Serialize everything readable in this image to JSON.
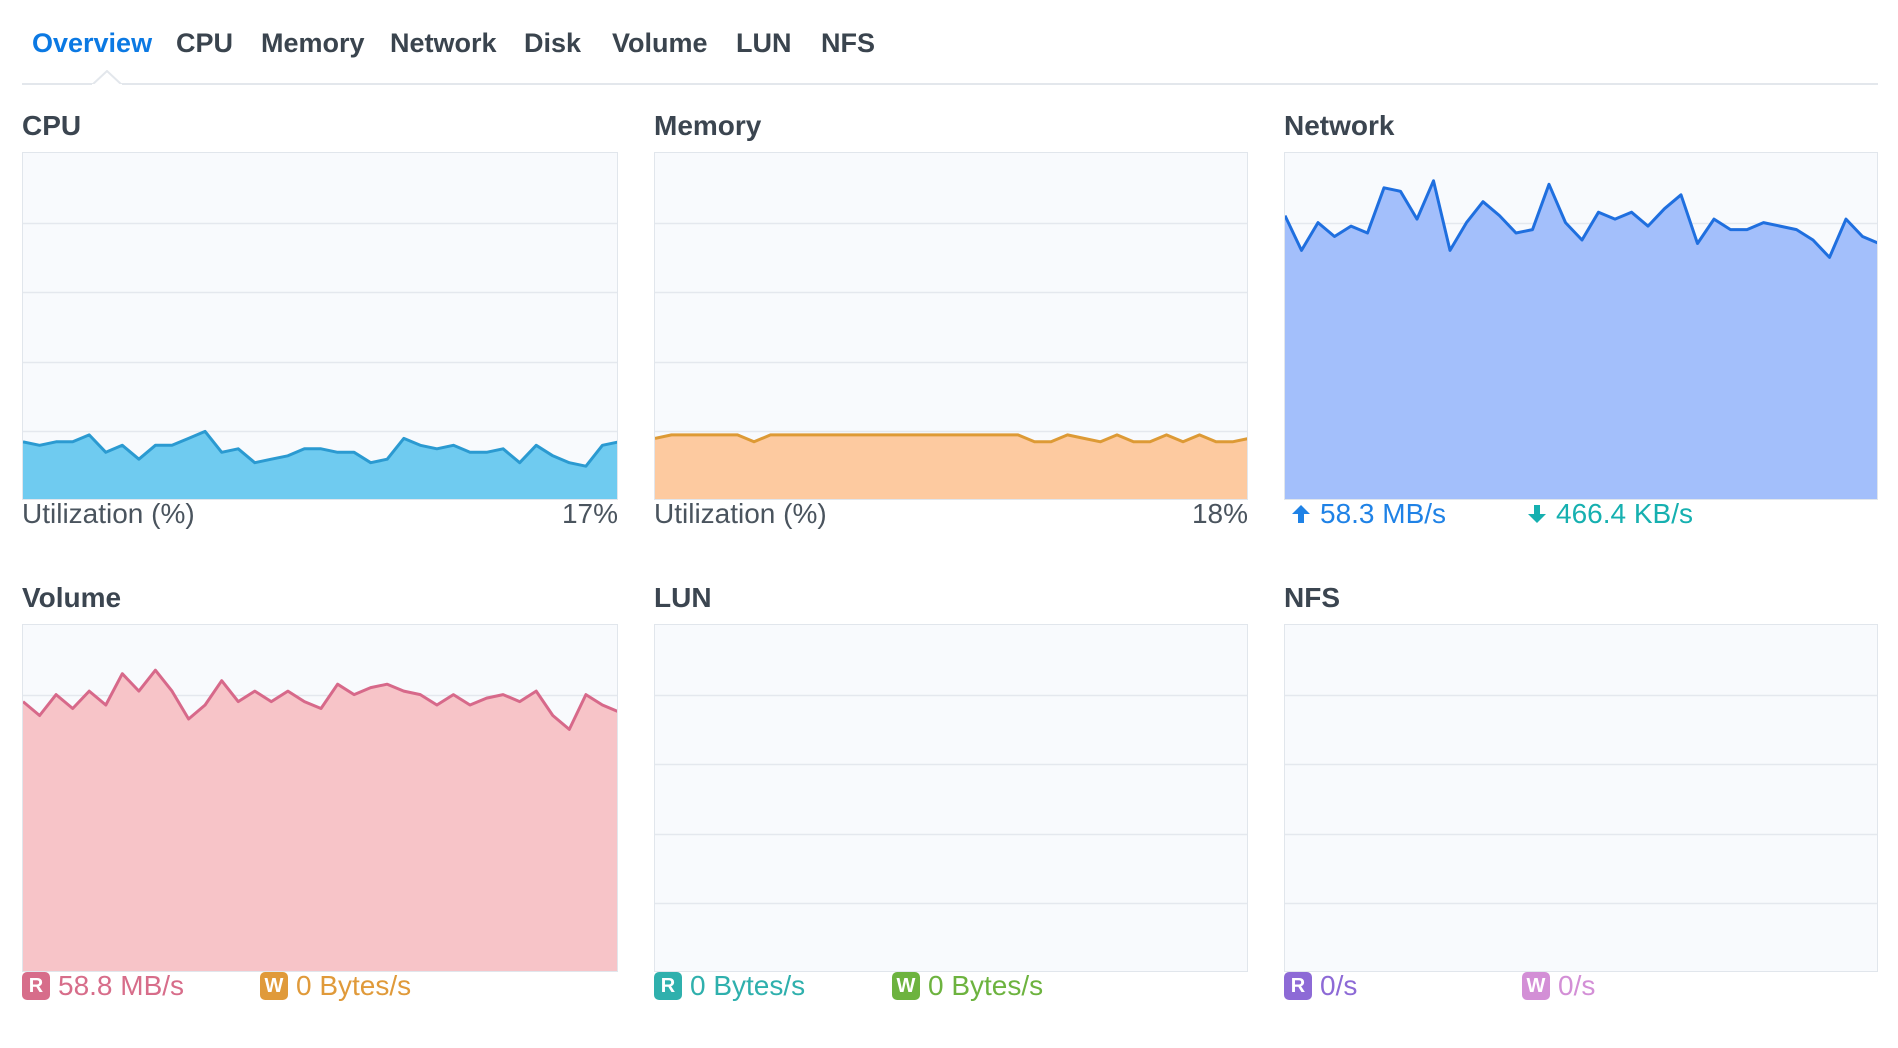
{
  "tabs": [
    {
      "label": "Overview",
      "active": true
    },
    {
      "label": "CPU"
    },
    {
      "label": "Memory"
    },
    {
      "label": "Network"
    },
    {
      "label": "Disk"
    },
    {
      "label": "Volume"
    },
    {
      "label": "LUN"
    },
    {
      "label": "NFS"
    }
  ],
  "panels": {
    "cpu": {
      "title": "CPU",
      "label": "Utilization  (%)",
      "value": "17%",
      "color": "#2b9ad1",
      "fill": "#6fcbf0",
      "series": [
        17,
        16,
        17,
        17,
        19,
        14,
        16,
        12,
        16,
        16,
        18,
        20,
        14,
        15,
        11,
        12,
        13,
        15,
        15,
        14,
        14,
        11,
        12,
        18,
        16,
        15,
        16,
        14,
        14,
        15,
        11,
        16,
        13,
        11,
        10,
        16,
        17
      ]
    },
    "memory": {
      "title": "Memory",
      "label": "Utilization  (%)",
      "value": "18%",
      "color": "#dd9a35",
      "fill": "#fdcaa0",
      "series": [
        18,
        19,
        19,
        19,
        19,
        19,
        17,
        19,
        19,
        19,
        19,
        19,
        19,
        19,
        19,
        19,
        19,
        19,
        19,
        19,
        19,
        19,
        19,
        17,
        17,
        19,
        18,
        17,
        19,
        17,
        17,
        19,
        17,
        19,
        17,
        17,
        18
      ]
    },
    "network": {
      "title": "Network",
      "upload": "58.3 MB/s",
      "download": "466.4 KB/s",
      "upload_color": "#1f82e6",
      "download_color": "#16b0b0",
      "color": "#1f6fdf",
      "fill": "#a3bffb",
      "series": [
        82,
        72,
        80,
        76,
        79,
        77,
        90,
        89,
        81,
        92,
        72,
        80,
        86,
        82,
        77,
        78,
        91,
        80,
        75,
        83,
        81,
        83,
        79,
        84,
        88,
        74,
        81,
        78,
        78,
        80,
        79,
        78,
        75,
        70,
        81,
        76,
        74
      ]
    },
    "volume": {
      "title": "Volume",
      "read": "58.8 MB/s",
      "write": "0 Bytes/s",
      "read_color": "#d76d8a",
      "write_color": "#e09a3a",
      "color": "#d7698a",
      "fill": "#f7c4c8",
      "series": [
        78,
        74,
        80,
        76,
        81,
        77,
        86,
        81,
        87,
        81,
        73,
        77,
        84,
        78,
        81,
        78,
        81,
        78,
        76,
        83,
        80,
        82,
        83,
        81,
        80,
        77,
        80,
        77,
        79,
        80,
        78,
        81,
        74,
        70,
        80,
        77,
        75
      ]
    },
    "lun": {
      "title": "LUN",
      "read": "0 Bytes/s",
      "write": "0 Bytes/s",
      "read_color": "#2fb0ad",
      "write_color": "#6db33f",
      "color": "#22a596"
    },
    "nfs": {
      "title": "NFS",
      "read": "0/s",
      "write": "0/s",
      "read_color": "#8d6ad6",
      "write_color": "#d38fd6",
      "color": "#8a6fd2"
    }
  }
}
